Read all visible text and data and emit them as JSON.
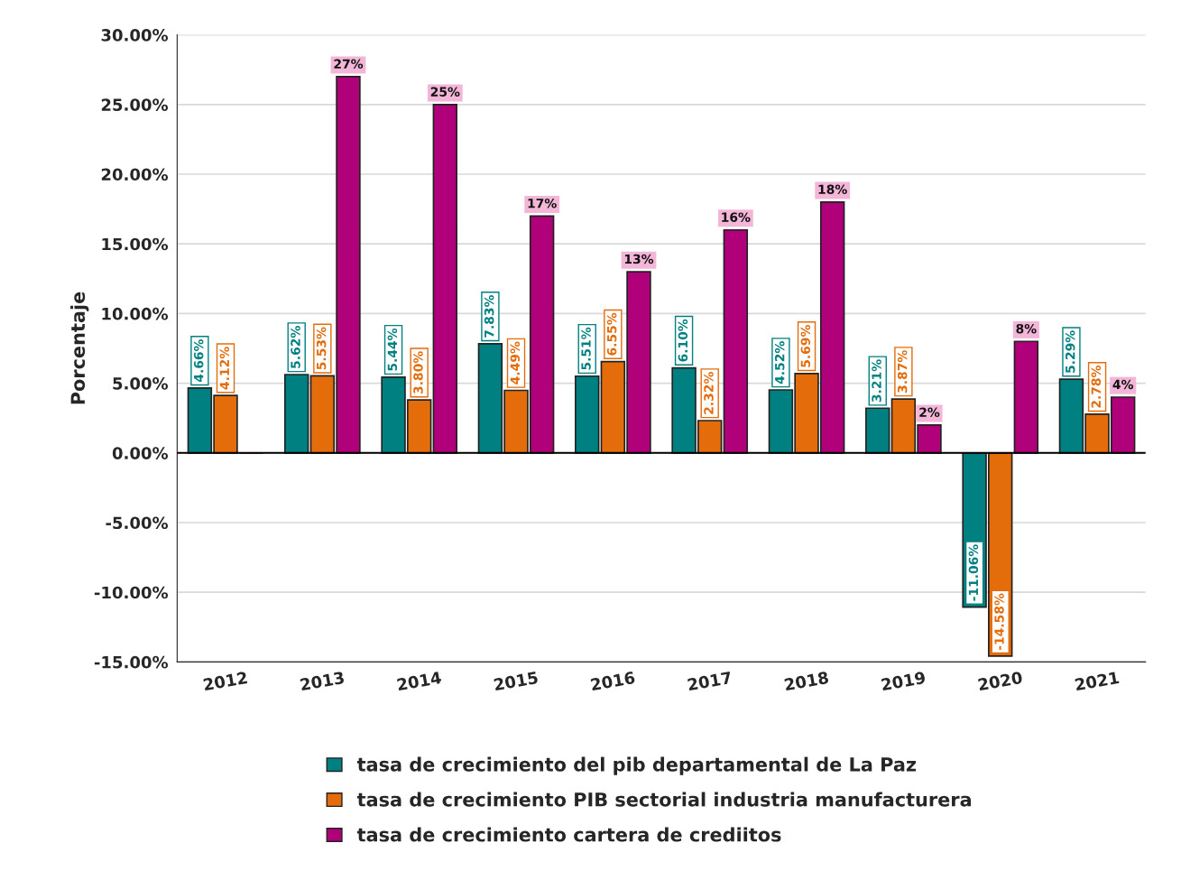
{
  "chart_data": {
    "type": "bar",
    "ylabel": "Porcentaje",
    "categories": [
      "2012",
      "2013",
      "2014",
      "2015",
      "2016",
      "2017",
      "2018",
      "2019",
      "2020",
      "2021"
    ],
    "series": [
      {
        "name": "tasa de crecimiento del pib departamental de La Paz",
        "color": "#008080",
        "values": [
          4.66,
          5.62,
          5.44,
          7.83,
          5.51,
          6.1,
          4.52,
          3.21,
          -11.06,
          5.29
        ],
        "value_labels": [
          "4.66%",
          "5.62%",
          "5.44%",
          "7.83%",
          "5.51%",
          "6.10%",
          "4.52%",
          "3.21%",
          "-11.06%",
          "5.29%"
        ]
      },
      {
        "name": "tasa de crecimiento PIB sectorial industria manufacturera",
        "color": "#e46c0a",
        "values": [
          4.12,
          5.53,
          3.8,
          4.49,
          6.55,
          2.32,
          5.69,
          3.87,
          -14.58,
          2.78
        ],
        "value_labels": [
          "4.12%",
          "5.53%",
          "3.80%",
          "4.49%",
          "6.55%",
          "2.32%",
          "5.69%",
          "3.87%",
          "-14.58%",
          "2.78%"
        ]
      },
      {
        "name": "tasa de crecimiento cartera de crediitos",
        "color": "#b0007a",
        "values": [
          0,
          27,
          25,
          17,
          13,
          16,
          18,
          2,
          8,
          4
        ],
        "value_labels": [
          null,
          "27%",
          "25%",
          "17%",
          "13%",
          "16%",
          "18%",
          "2%",
          "8%",
          "4%"
        ]
      }
    ],
    "ylim": [
      -15,
      30
    ],
    "yticks": [
      {
        "value": -15,
        "label": "-15.00%"
      },
      {
        "value": -10,
        "label": "-10.00%"
      },
      {
        "value": -5,
        "label": "-5.00%"
      },
      {
        "value": 0,
        "label": "0.00%"
      },
      {
        "value": 5,
        "label": "5.00%"
      },
      {
        "value": 10,
        "label": "10.00%"
      },
      {
        "value": 15,
        "label": "15.00%"
      },
      {
        "value": 20,
        "label": "20.00%"
      },
      {
        "value": 25,
        "label": "25.00%"
      },
      {
        "value": 30,
        "label": "30.00%"
      }
    ],
    "grid": "y",
    "legend": "bottom"
  }
}
